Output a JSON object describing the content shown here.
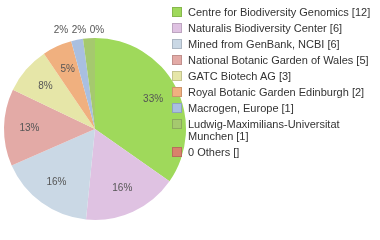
{
  "chart_data": {
    "type": "pie",
    "categories": [
      "Centre for Biodiversity Genomics [12]",
      "Naturalis Biodiversity Center [6]",
      "Mined from GenBank, NCBI [6]",
      "National Botanic Garden of Wales [5]",
      "GATC Biotech AG [3]",
      "Royal Botanic Garden Edinburgh [2]",
      "Macrogen, Europe [1]",
      "Ludwig-Maximilians-Universitat Munchen [1]",
      "0 Others []"
    ],
    "values": [
      33,
      16,
      16,
      13,
      8,
      5,
      2,
      2,
      0
    ],
    "value_labels": [
      "33%",
      "16%",
      "16%",
      "13%",
      "8%",
      "5%",
      "2%",
      "2%",
      "0%"
    ],
    "colors": [
      "#9fd95b",
      "#dfc2e2",
      "#cad8e5",
      "#e3aaa6",
      "#e6e6a8",
      "#f0b07f",
      "#a9bfe0",
      "#a5c96e",
      "#d9826b"
    ],
    "data_labels": true,
    "legend": "right"
  }
}
